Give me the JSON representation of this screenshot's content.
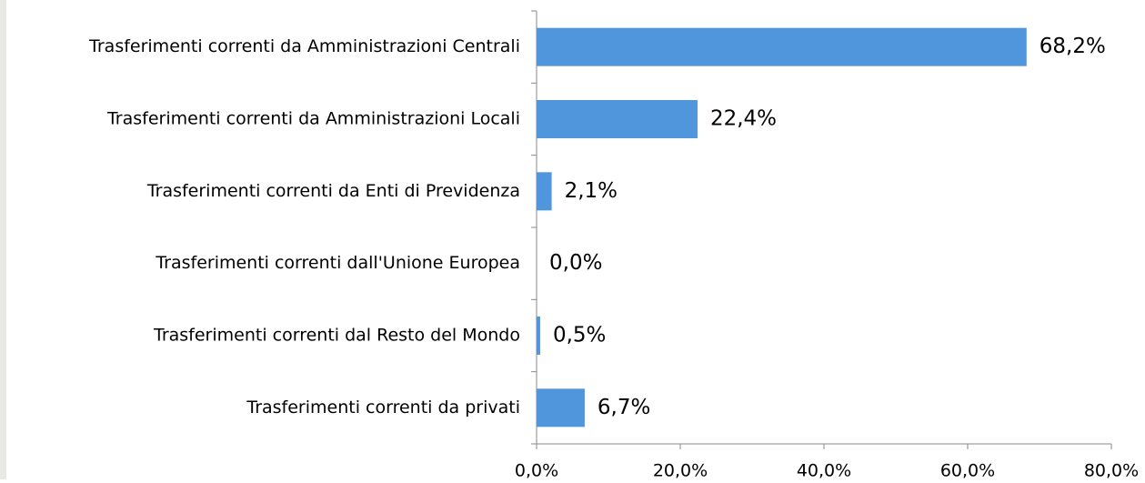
{
  "chart_data": {
    "type": "barh",
    "categories": [
      "Trasferimenti correnti da Amministrazioni Centrali",
      "Trasferimenti correnti da Amministrazioni Locali",
      "Trasferimenti correnti da Enti di Previdenza",
      "Trasferimenti correnti dall'Unione Europea",
      "Trasferimenti correnti dal Resto del Mondo",
      "Trasferimenti correnti da privati"
    ],
    "values": [
      68.2,
      22.4,
      2.1,
      0.0,
      0.5,
      6.7
    ],
    "value_labels": [
      "68,2%",
      "22,4%",
      "2,1%",
      "0,0%",
      "0,5%",
      "6,7%"
    ],
    "color": "#5096dc",
    "xlim": [
      0,
      80
    ],
    "xticks": [
      {
        "value": 0,
        "label": "0,0%"
      },
      {
        "value": 20,
        "label": "20,0%"
      },
      {
        "value": 40,
        "label": "40,0%"
      },
      {
        "value": 60,
        "label": "60,0%"
      },
      {
        "value": 80,
        "label": "80,0%"
      }
    ],
    "grid": false
  }
}
